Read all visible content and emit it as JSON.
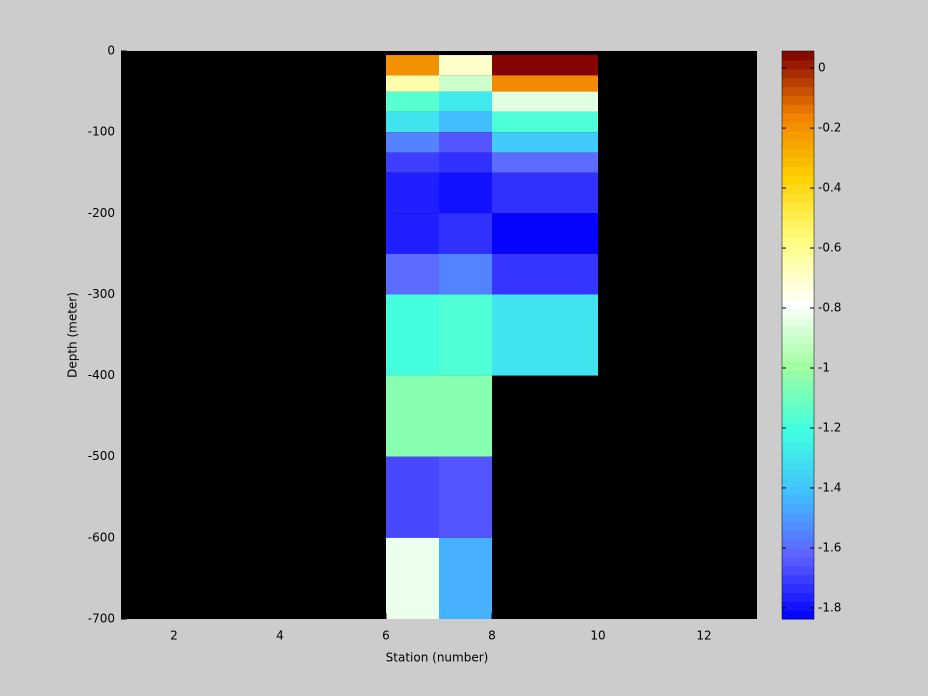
{
  "chart_data": {
    "type": "heatmap",
    "xlabel": "Station (number)",
    "ylabel": "Depth (meter)",
    "x_edges": [
      6,
      7,
      8,
      10
    ],
    "y_edges": [
      -5,
      -30,
      -50,
      -75,
      -100,
      -125,
      -150,
      -200,
      -250,
      -300,
      -400,
      -500,
      -600,
      -700
    ],
    "values": [
      [
        -0.2,
        -0.7,
        0.05
      ],
      [
        -0.65,
        -0.9,
        -0.18
      ],
      [
        -1.15,
        -1.28,
        -0.85
      ],
      [
        -1.3,
        -1.42,
        -1.18
      ],
      [
        -1.55,
        -1.65,
        -1.38
      ],
      [
        -1.7,
        -1.73,
        -1.6
      ],
      [
        -1.77,
        -1.8,
        -1.73
      ],
      [
        -1.77,
        -1.73,
        -1.83
      ],
      [
        -1.6,
        -1.55,
        -1.72
      ],
      [
        -1.2,
        -1.17,
        -1.3
      ],
      [
        -1.05,
        -1.05,
        null
      ],
      [
        -1.68,
        -1.65,
        null
      ],
      [
        -0.83,
        -1.45,
        null
      ]
    ],
    "xlim": [
      1,
      13
    ],
    "xticks": [
      2,
      4,
      6,
      8,
      10,
      12
    ],
    "ylim": [
      -700,
      0
    ],
    "yticks": [
      0,
      -100,
      -200,
      -300,
      -400,
      -500,
      -600,
      -700
    ],
    "clim": [
      -1.837,
      0.057
    ],
    "cticks": [
      0,
      -0.2,
      -0.4,
      -0.6,
      -0.8,
      -1,
      -1.2,
      -1.4,
      -1.6,
      -1.8
    ],
    "colormap": [
      "#0000ff",
      "#6060ff",
      "#40c0ff",
      "#40ffe0",
      "#a0ffa0",
      "#ffffff",
      "#ffff80",
      "#ffd000",
      "#f08000",
      "#800000"
    ],
    "background": "#000000"
  }
}
